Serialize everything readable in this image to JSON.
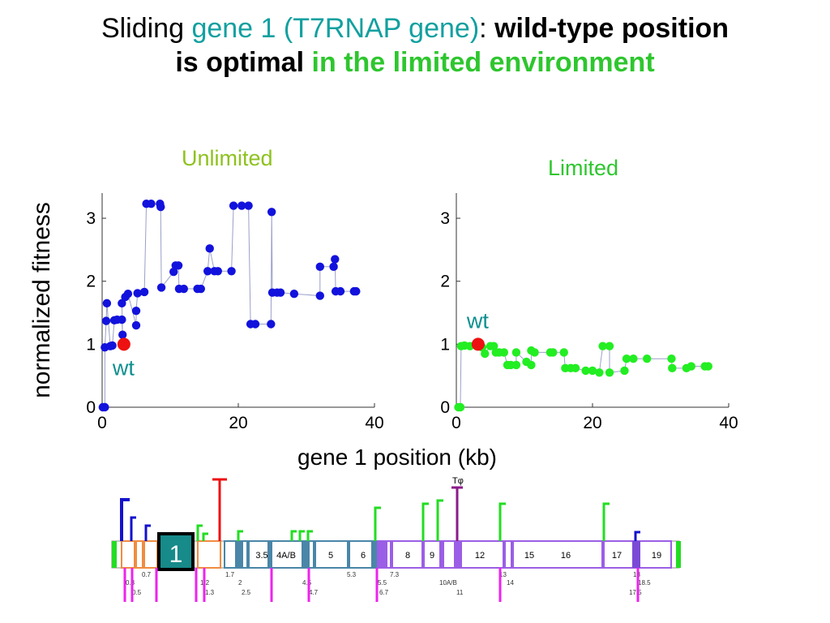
{
  "title": {
    "part1": "Sliding ",
    "part2": "gene 1 (T7RNAP gene)",
    "part3": ": ",
    "part4": "wild-type position",
    "part5": "is optimal",
    "part6": " in the limited environment"
  },
  "colors": {
    "teal": "#12a0a0",
    "bright_green": "#2ec62e",
    "unlimited_title": "#8ec21e",
    "limited_title": "#2ec62e",
    "unlimited_points": "#1212dd",
    "limited_points": "#22ee22",
    "wt_point": "#ee1111",
    "wt_label": "#0e8f8f"
  },
  "ylabel": "normalized fitness",
  "xlabel": "gene 1 position (kb)",
  "chart_data": [
    {
      "type": "scatter",
      "title": "Unlimited",
      "xlim": [
        0,
        40
      ],
      "ylim": [
        0,
        3.4
      ],
      "xticks": [
        "0",
        "20",
        "40"
      ],
      "yticks": [
        "0",
        "1",
        "2",
        "3"
      ],
      "connected": true,
      "points": [
        [
          0.1,
          0
        ],
        [
          0.4,
          0
        ],
        [
          0.4,
          0.95
        ],
        [
          0.6,
          1.37
        ],
        [
          0.7,
          1.65
        ],
        [
          1.2,
          0.97
        ],
        [
          1.5,
          0.98
        ],
        [
          1.8,
          1.38
        ],
        [
          2.2,
          1.39
        ],
        [
          2.9,
          1.39
        ],
        [
          3.0,
          1.15
        ],
        [
          2.9,
          1.65
        ],
        [
          3.4,
          1.75
        ],
        [
          3.8,
          1.8
        ],
        [
          5.0,
          1.3
        ],
        [
          5.0,
          1.53
        ],
        [
          5.2,
          1.81
        ],
        [
          6.2,
          1.83
        ],
        [
          6.5,
          3.23
        ],
        [
          7.2,
          3.23
        ],
        [
          8.5,
          3.23
        ],
        [
          8.6,
          3.18
        ],
        [
          8.7,
          1.9
        ],
        [
          10.5,
          2.15
        ],
        [
          10.8,
          2.25
        ],
        [
          11.2,
          2.25
        ],
        [
          11.3,
          1.88
        ],
        [
          12.0,
          1.88
        ],
        [
          14.0,
          1.88
        ],
        [
          14.5,
          1.88
        ],
        [
          15.5,
          2.16
        ],
        [
          15.8,
          2.52
        ],
        [
          16.5,
          2.16
        ],
        [
          17.0,
          2.16
        ],
        [
          19.0,
          2.16
        ],
        [
          19.3,
          3.2
        ],
        [
          20.5,
          3.2
        ],
        [
          21.5,
          3.2
        ],
        [
          21.8,
          1.32
        ],
        [
          22.5,
          1.32
        ],
        [
          24.8,
          1.32
        ],
        [
          24.9,
          3.1
        ],
        [
          25.0,
          1.82
        ],
        [
          25.7,
          1.82
        ],
        [
          26.2,
          1.82
        ],
        [
          28.2,
          1.8
        ],
        [
          32.0,
          1.77
        ],
        [
          32.0,
          2.23
        ],
        [
          34.0,
          2.23
        ],
        [
          34.2,
          2.35
        ],
        [
          34.3,
          1.84
        ],
        [
          35.0,
          1.84
        ],
        [
          37.0,
          1.84
        ],
        [
          37.3,
          1.84
        ]
      ],
      "wt": {
        "x": 3.2,
        "y": 1.0,
        "label": "wt"
      }
    },
    {
      "type": "scatter",
      "title": "Limited",
      "xlim": [
        0,
        40
      ],
      "ylim": [
        0,
        3.4
      ],
      "xticks": [
        "0",
        "20",
        "40"
      ],
      "yticks": [
        "0",
        "1",
        "2",
        "3"
      ],
      "connected": true,
      "points": [
        [
          0.3,
          0
        ],
        [
          0.6,
          0
        ],
        [
          0.7,
          0.97
        ],
        [
          1.2,
          0.98
        ],
        [
          2.0,
          0.97
        ],
        [
          3.0,
          0.97
        ],
        [
          3.8,
          0.95
        ],
        [
          4.2,
          0.85
        ],
        [
          5.0,
          0.97
        ],
        [
          5.5,
          0.97
        ],
        [
          5.8,
          0.87
        ],
        [
          6.3,
          0.87
        ],
        [
          7.0,
          0.87
        ],
        [
          7.5,
          0.67
        ],
        [
          8.0,
          0.67
        ],
        [
          8.8,
          0.67
        ],
        [
          8.8,
          0.87
        ],
        [
          10.3,
          0.72
        ],
        [
          11.0,
          0.67
        ],
        [
          11.0,
          0.9
        ],
        [
          11.5,
          0.87
        ],
        [
          13.8,
          0.87
        ],
        [
          14.2,
          0.87
        ],
        [
          15.8,
          0.87
        ],
        [
          16.0,
          0.62
        ],
        [
          16.8,
          0.62
        ],
        [
          17.5,
          0.62
        ],
        [
          19.0,
          0.58
        ],
        [
          20.0,
          0.58
        ],
        [
          21.0,
          0.55
        ],
        [
          21.5,
          0.97
        ],
        [
          22.5,
          0.97
        ],
        [
          22.5,
          0.55
        ],
        [
          24.7,
          0.58
        ],
        [
          25.0,
          0.77
        ],
        [
          26.0,
          0.77
        ],
        [
          28.0,
          0.77
        ],
        [
          31.6,
          0.77
        ],
        [
          31.7,
          0.62
        ],
        [
          33.8,
          0.62
        ],
        [
          34.5,
          0.65
        ],
        [
          36.5,
          0.65
        ],
        [
          37.0,
          0.65
        ]
      ],
      "wt": {
        "x": 3.2,
        "y": 1.0,
        "label": "wt"
      }
    }
  ],
  "genome": {
    "label_1": "1",
    "terminator_label": "Tφ",
    "boxes": [
      "3.5",
      "4A/B",
      "5",
      "6",
      "8",
      "9",
      "12",
      "15",
      "16",
      "17",
      "19"
    ],
    "labels_row1": [
      "0.3",
      "0.7",
      "1.2",
      "1.7",
      "2",
      "4.5",
      "5.3",
      "5.5",
      "7.3",
      "10A/B",
      "13",
      "14",
      "18",
      "18.5"
    ],
    "labels_row2": [
      "0.5",
      "1.3",
      "2.5",
      "4.7",
      "6.7",
      "11",
      "17.5"
    ]
  }
}
